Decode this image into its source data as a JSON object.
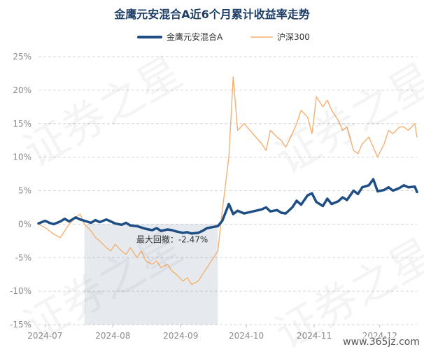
{
  "chart_data": {
    "type": "line",
    "title": "金鹰元安混合A近6个月累计收益率走势",
    "ylim": [
      -15,
      25
    ],
    "y_ticks": [
      "25%",
      "20%",
      "15%",
      "10%",
      "5%",
      "0%",
      "-5%",
      "-10%",
      "-15%"
    ],
    "y_tick_values": [
      25,
      20,
      15,
      10,
      5,
      0,
      -5,
      -10,
      -15
    ],
    "x_tick_labels": [
      "2024-07",
      "2024-08",
      "2024-09",
      "2024-10",
      "2024-11",
      "2024-12"
    ],
    "x_tick_dates": [
      "2024-07-01",
      "2024-08-01",
      "2024-09-01",
      "2024-10-01",
      "2024-11-01",
      "2024-12-01"
    ],
    "x_range": [
      "2024-06-28",
      "2024-12-18"
    ],
    "grid": true,
    "legend_position": "top",
    "series": [
      {
        "name": "金鹰元安混合A",
        "color": "#1f4e84",
        "x": [
          "2024-06-28",
          "2024-07-01",
          "2024-07-03",
          "2024-07-05",
          "2024-07-08",
          "2024-07-10",
          "2024-07-12",
          "2024-07-15",
          "2024-07-17",
          "2024-07-19",
          "2024-07-22",
          "2024-07-24",
          "2024-07-26",
          "2024-07-29",
          "2024-07-31",
          "2024-08-02",
          "2024-08-05",
          "2024-08-07",
          "2024-08-09",
          "2024-08-12",
          "2024-08-14",
          "2024-08-16",
          "2024-08-19",
          "2024-08-21",
          "2024-08-23",
          "2024-08-26",
          "2024-08-28",
          "2024-08-30",
          "2024-09-02",
          "2024-09-04",
          "2024-09-06",
          "2024-09-09",
          "2024-09-11",
          "2024-09-13",
          "2024-09-18",
          "2024-09-20",
          "2024-09-23",
          "2024-09-25",
          "2024-09-27",
          "2024-09-30",
          "2024-10-08",
          "2024-10-10",
          "2024-10-12",
          "2024-10-15",
          "2024-10-17",
          "2024-10-19",
          "2024-10-22",
          "2024-10-24",
          "2024-10-26",
          "2024-10-29",
          "2024-10-31",
          "2024-11-02",
          "2024-11-05",
          "2024-11-07",
          "2024-11-09",
          "2024-11-12",
          "2024-11-14",
          "2024-11-16",
          "2024-11-19",
          "2024-11-21",
          "2024-11-23",
          "2024-11-26",
          "2024-11-28",
          "2024-11-30",
          "2024-12-03",
          "2024-12-05",
          "2024-12-07",
          "2024-12-10",
          "2024-12-12",
          "2024-12-14",
          "2024-12-17",
          "2024-12-18"
        ],
        "values": [
          0.1,
          0.5,
          0.2,
          0.0,
          0.4,
          0.8,
          0.4,
          1.0,
          0.7,
          0.5,
          0.2,
          0.6,
          0.3,
          0.7,
          0.4,
          0.1,
          -0.1,
          0.2,
          -0.2,
          -0.3,
          -0.5,
          -0.7,
          -0.9,
          -0.6,
          -1.0,
          -0.8,
          -0.9,
          -1.1,
          -1.3,
          -1.2,
          -1.4,
          -1.3,
          -1.0,
          -0.6,
          -0.3,
          0.5,
          3.0,
          1.5,
          2.0,
          1.6,
          2.2,
          2.5,
          1.9,
          2.1,
          1.7,
          1.6,
          2.5,
          3.5,
          2.9,
          4.3,
          4.6,
          3.3,
          2.7,
          3.8,
          3.0,
          3.4,
          4.0,
          3.6,
          5.0,
          4.5,
          5.5,
          5.8,
          6.7,
          4.9,
          5.1,
          5.5,
          5.0,
          5.4,
          5.8,
          5.5,
          5.6,
          4.8
        ]
      },
      {
        "name": "沪深300",
        "color": "#f5b071",
        "x": [
          "2024-06-28",
          "2024-07-01",
          "2024-07-03",
          "2024-07-05",
          "2024-07-08",
          "2024-07-10",
          "2024-07-12",
          "2024-07-15",
          "2024-07-17",
          "2024-07-19",
          "2024-07-22",
          "2024-07-24",
          "2024-07-26",
          "2024-07-29",
          "2024-07-31",
          "2024-08-02",
          "2024-08-05",
          "2024-08-07",
          "2024-08-09",
          "2024-08-12",
          "2024-08-14",
          "2024-08-16",
          "2024-08-19",
          "2024-08-21",
          "2024-08-23",
          "2024-08-26",
          "2024-08-28",
          "2024-08-30",
          "2024-09-02",
          "2024-09-04",
          "2024-09-06",
          "2024-09-09",
          "2024-09-11",
          "2024-09-13",
          "2024-09-18",
          "2024-09-20",
          "2024-09-23",
          "2024-09-25",
          "2024-09-27",
          "2024-09-30",
          "2024-10-08",
          "2024-10-10",
          "2024-10-12",
          "2024-10-15",
          "2024-10-17",
          "2024-10-19",
          "2024-10-22",
          "2024-10-24",
          "2024-10-26",
          "2024-10-29",
          "2024-10-31",
          "2024-11-02",
          "2024-11-05",
          "2024-11-07",
          "2024-11-09",
          "2024-11-12",
          "2024-11-14",
          "2024-11-16",
          "2024-11-19",
          "2024-11-21",
          "2024-11-23",
          "2024-11-26",
          "2024-11-28",
          "2024-11-30",
          "2024-12-03",
          "2024-12-05",
          "2024-12-07",
          "2024-12-10",
          "2024-12-12",
          "2024-12-14",
          "2024-12-17",
          "2024-12-18"
        ],
        "values": [
          0.0,
          -0.5,
          -1.0,
          -1.5,
          -2.0,
          -1.0,
          0.0,
          1.0,
          1.5,
          0.0,
          -1.0,
          -2.0,
          -2.5,
          -3.5,
          -4.0,
          -3.0,
          -4.0,
          -4.5,
          -3.5,
          -5.0,
          -4.0,
          -5.5,
          -6.0,
          -5.5,
          -6.5,
          -6.0,
          -7.0,
          -7.5,
          -8.5,
          -8.0,
          -9.0,
          -8.5,
          -7.5,
          -6.5,
          -4.0,
          2.0,
          10.0,
          22.0,
          14.0,
          15.0,
          12.0,
          11.0,
          14.0,
          13.0,
          12.5,
          11.5,
          13.5,
          15.0,
          17.0,
          16.0,
          13.5,
          19.0,
          17.5,
          18.5,
          17.0,
          15.5,
          14.0,
          14.5,
          11.0,
          10.5,
          12.0,
          13.0,
          11.5,
          10.0,
          12.0,
          14.0,
          13.5,
          14.5,
          14.5,
          14.0,
          15.0,
          13.0
        ]
      }
    ],
    "annotation": {
      "label": "最大回撤：-2.47%",
      "start": "2024-07-19",
      "end": "2024-09-18"
    },
    "watermark": "证券之星",
    "site_label": "www.365jz.com"
  }
}
